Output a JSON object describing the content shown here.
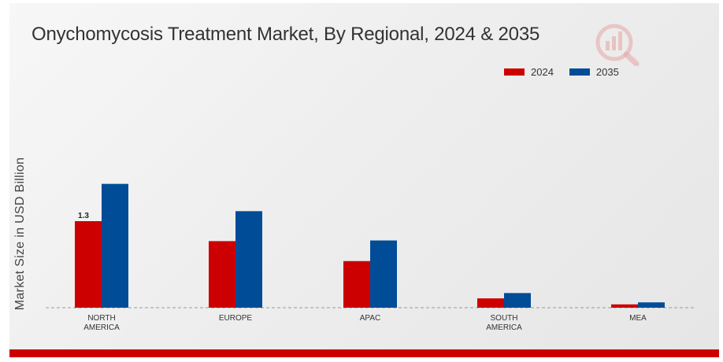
{
  "chart_data": {
    "type": "bar",
    "title": "Onychomycosis Treatment Market, By Regional, 2024 & 2035",
    "ylabel": "Market Size in USD Billion",
    "xlabel": "",
    "categories": [
      [
        "NORTH",
        "AMERICA"
      ],
      [
        "EUROPE"
      ],
      [
        "APAC"
      ],
      [
        "SOUTH",
        "AMERICA"
      ],
      [
        "MEA"
      ]
    ],
    "series": [
      {
        "name": "2024",
        "color": "#cc0000",
        "values": [
          1.3,
          1.0,
          0.7,
          0.14,
          0.05
        ]
      },
      {
        "name": "2035",
        "color": "#004c97",
        "values": [
          1.86,
          1.45,
          1.01,
          0.22,
          0.08
        ]
      }
    ],
    "data_labels": [
      {
        "series": 0,
        "index": 0,
        "text": "1.3"
      }
    ],
    "ylim": [
      0,
      2.0
    ],
    "grid": false,
    "legend_position": "top-right"
  },
  "logo": {
    "name": "market-research-logo-icon"
  }
}
